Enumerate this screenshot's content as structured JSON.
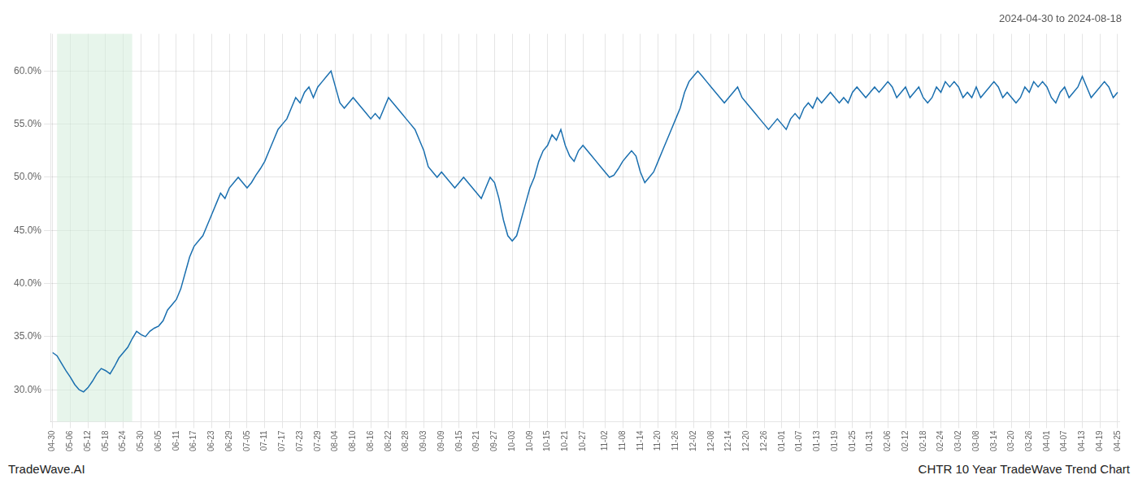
{
  "chart_data": {
    "type": "line",
    "title": "2024-04-30 to 2024-08-18",
    "annotations": [
      "TradeWave.AI",
      "CHTR 10 Year TradeWave Trend Chart"
    ],
    "color": "#1a6faf",
    "grid": true,
    "ylim": [
      27.0,
      63.5
    ],
    "yticks": [
      {
        "value": 30.0,
        "label": "30.0%"
      },
      {
        "value": 35.0,
        "label": "35.0%"
      },
      {
        "value": 40.0,
        "label": "40.0%"
      },
      {
        "value": 45.0,
        "label": "45.0%"
      },
      {
        "value": 50.0,
        "label": "50.0%"
      },
      {
        "value": 55.0,
        "label": "55.0%"
      },
      {
        "value": 60.0,
        "label": "60.0%"
      }
    ],
    "shade": {
      "start": 1,
      "end": 18,
      "color": "#d4edda"
    },
    "categories": [
      "04-30",
      null,
      null,
      null,
      "05-06",
      null,
      null,
      null,
      "05-12",
      null,
      null,
      null,
      "05-18",
      null,
      null,
      null,
      "05-24",
      null,
      null,
      null,
      "05-30",
      null,
      null,
      null,
      "06-05",
      null,
      null,
      null,
      "06-11",
      null,
      null,
      null,
      "06-17",
      null,
      null,
      null,
      "06-23",
      null,
      null,
      null,
      "06-29",
      null,
      null,
      null,
      "07-05",
      null,
      null,
      null,
      "07-11",
      null,
      null,
      null,
      "07-17",
      null,
      null,
      null,
      "07-23",
      null,
      null,
      null,
      "07-29",
      null,
      null,
      null,
      "08-04",
      null,
      null,
      null,
      "08-10",
      null,
      null,
      null,
      "08-16",
      null,
      null,
      null,
      "08-22",
      null,
      null,
      null,
      "08-28",
      null,
      null,
      null,
      "09-03",
      null,
      null,
      null,
      "09-09",
      null,
      null,
      null,
      "09-15",
      null,
      null,
      null,
      "09-21",
      null,
      null,
      null,
      "09-27",
      null,
      null,
      null,
      "10-03",
      null,
      null,
      null,
      "10-09",
      null,
      null,
      null,
      "10-15",
      null,
      null,
      null,
      "10-21",
      null,
      null,
      null,
      "10-27",
      null,
      null,
      null,
      null,
      "11-02",
      null,
      null,
      null,
      "11-08",
      null,
      null,
      null,
      "11-14",
      null,
      null,
      null,
      "11-20",
      null,
      null,
      null,
      "11-26",
      null,
      null,
      null,
      "12-02",
      null,
      null,
      null,
      "12-08",
      null,
      null,
      null,
      "12-14",
      null,
      null,
      null,
      "12-20",
      null,
      null,
      null,
      "12-26",
      null,
      null,
      null,
      "01-01",
      null,
      null,
      null,
      "01-07",
      null,
      null,
      null,
      "01-13",
      null,
      null,
      null,
      "01-19",
      null,
      null,
      null,
      "01-25",
      null,
      null,
      null,
      "01-31",
      null,
      null,
      null,
      "02-06",
      null,
      null,
      null,
      "02-12",
      null,
      null,
      null,
      "02-18",
      null,
      null,
      null,
      "02-24",
      null,
      null,
      null,
      "03-02",
      null,
      null,
      null,
      "03-08",
      null,
      null,
      null,
      "03-14",
      null,
      null,
      null,
      "03-20",
      null,
      null,
      null,
      "03-26",
      null,
      null,
      null,
      "04-01",
      null,
      null,
      null,
      "04-07",
      null,
      null,
      null,
      "04-13",
      null,
      null,
      null,
      "04-19",
      null,
      null,
      null,
      "04-25"
    ],
    "values": [
      33.5,
      33.2,
      32.5,
      31.8,
      31.2,
      30.5,
      30.0,
      29.8,
      30.2,
      30.8,
      31.5,
      32.0,
      31.8,
      31.5,
      32.2,
      33.0,
      33.5,
      34.0,
      34.8,
      35.5,
      35.2,
      35.0,
      35.5,
      35.8,
      36.0,
      36.5,
      37.5,
      38.0,
      38.5,
      39.5,
      41.0,
      42.5,
      43.5,
      44.0,
      44.5,
      45.5,
      46.5,
      47.5,
      48.5,
      48.0,
      49.0,
      49.5,
      50.0,
      49.5,
      49.0,
      49.5,
      50.2,
      50.8,
      51.5,
      52.5,
      53.5,
      54.5,
      55.0,
      55.5,
      56.5,
      57.5,
      57.0,
      58.0,
      58.5,
      57.5,
      58.5,
      59.0,
      59.5,
      60.0,
      58.5,
      57.0,
      56.5,
      57.0,
      57.5,
      57.0,
      56.5,
      56.0,
      55.5,
      56.0,
      55.5,
      56.5,
      57.5,
      57.0,
      56.5,
      56.0,
      55.5,
      55.0,
      54.5,
      53.5,
      52.5,
      51.0,
      50.5,
      50.0,
      50.5,
      50.0,
      49.5,
      49.0,
      49.5,
      50.0,
      49.5,
      49.0,
      48.5,
      48.0,
      49.0,
      50.0,
      49.5,
      48.0,
      46.0,
      44.5,
      44.0,
      44.5,
      46.0,
      47.5,
      49.0,
      50.0,
      51.5,
      52.5,
      53.0,
      54.0,
      53.5,
      54.5,
      53.0,
      52.0,
      51.5,
      52.5,
      53.0,
      52.5,
      52.0,
      51.5,
      51.0,
      50.5,
      50.0,
      50.2,
      50.8,
      51.5,
      52.0,
      52.5,
      52.0,
      50.5,
      49.5,
      50.0,
      50.5,
      51.5,
      52.5,
      53.5,
      54.5,
      55.5,
      56.5,
      58.0,
      59.0,
      59.5,
      60.0,
      59.5,
      59.0,
      58.5,
      58.0,
      57.5,
      57.0,
      57.5,
      58.0,
      58.5,
      57.5,
      57.0,
      56.5,
      56.0,
      55.5,
      55.0,
      54.5,
      55.0,
      55.5,
      55.0,
      54.5,
      55.5,
      56.0,
      55.5,
      56.5,
      57.0,
      56.5,
      57.5,
      57.0,
      57.5,
      58.0,
      57.5,
      57.0,
      57.5,
      57.0,
      58.0,
      58.5,
      58.0,
      57.5,
      58.0,
      58.5,
      58.0,
      58.5,
      59.0,
      58.5,
      57.5,
      58.0,
      58.5,
      57.5,
      58.0,
      58.5,
      57.5,
      57.0,
      57.5,
      58.5,
      58.0,
      59.0,
      58.5,
      59.0,
      58.5,
      57.5,
      58.0,
      57.5,
      58.5,
      57.5,
      58.0,
      58.5,
      59.0,
      58.5,
      57.5,
      58.0,
      57.5,
      57.0,
      57.5,
      58.5,
      58.0,
      59.0,
      58.5,
      59.0,
      58.5,
      57.5,
      57.0,
      58.0,
      58.5,
      57.5,
      58.0,
      58.5,
      59.5,
      58.5,
      57.5,
      58.0,
      58.5,
      59.0,
      58.5,
      57.5,
      58.0
    ]
  }
}
